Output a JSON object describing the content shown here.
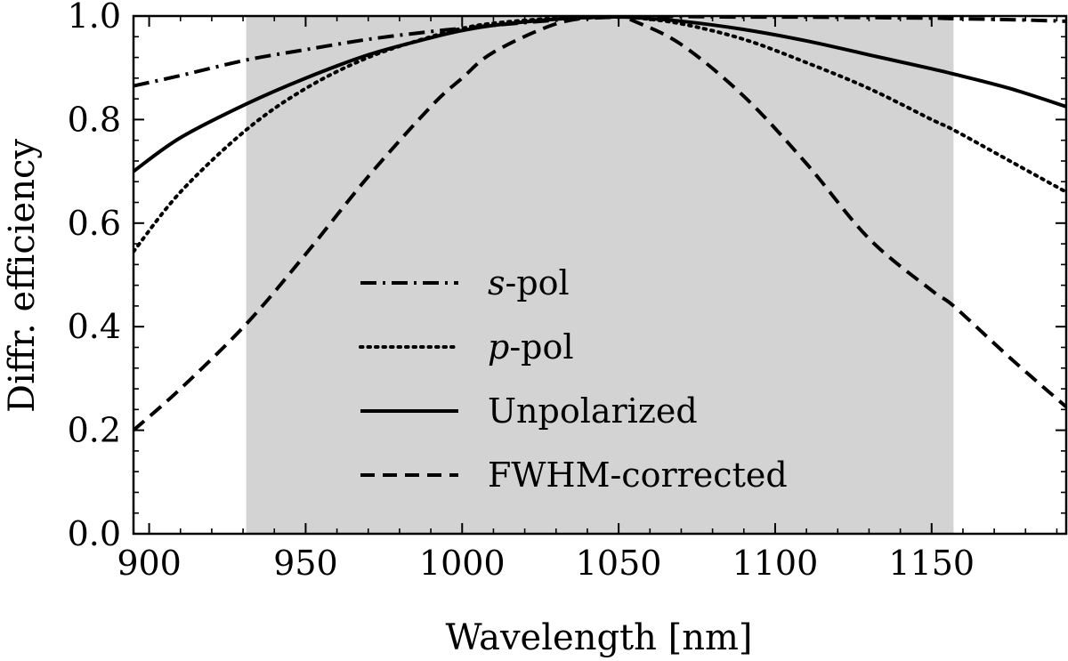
{
  "chart_data": {
    "type": "line",
    "xlabel": "Wavelength [nm]",
    "ylabel": "Diffr. efficiency",
    "xlim": [
      895,
      1193
    ],
    "ylim": [
      0.0,
      1.0
    ],
    "x_ticks": [
      900,
      950,
      1000,
      1050,
      1100,
      1150
    ],
    "x_tick_labels": [
      "900",
      "950",
      "1000",
      "1050",
      "1100",
      "1150"
    ],
    "y_ticks": [
      0.0,
      0.2,
      0.4,
      0.6,
      0.8,
      1.0
    ],
    "y_tick_labels": [
      "0.0",
      "0.2",
      "0.4",
      "0.6",
      "0.8",
      "1.0"
    ],
    "shaded_band": {
      "x_start": 931,
      "x_end": 1157,
      "color": "#d3d3d3"
    },
    "x": [
      895,
      910,
      931,
      950,
      970,
      990,
      1000,
      1010,
      1030,
      1045,
      1050,
      1055,
      1070,
      1090,
      1110,
      1130,
      1150,
      1157,
      1175,
      1193
    ],
    "series": [
      {
        "name": "s-pol",
        "italic_prefix": "s",
        "label_suffix": "-pol",
        "style": "dashdot",
        "values": [
          0.865,
          0.885,
          0.915,
          0.935,
          0.955,
          0.97,
          0.976,
          0.982,
          0.992,
          0.997,
          0.998,
          0.999,
          0.999,
          0.998,
          0.998,
          0.997,
          0.996,
          0.995,
          0.993,
          0.99
        ]
      },
      {
        "name": "p-pol",
        "italic_prefix": "p",
        "label_suffix": "-pol",
        "style": "dotted",
        "values": [
          0.545,
          0.66,
          0.78,
          0.86,
          0.92,
          0.96,
          0.976,
          0.986,
          0.996,
          0.999,
          0.999,
          0.997,
          0.985,
          0.955,
          0.91,
          0.86,
          0.8,
          0.78,
          0.72,
          0.66
        ]
      },
      {
        "name": "Unpolarized",
        "italic_prefix": "",
        "label_suffix": "Unpolarized",
        "style": "solid",
        "values": [
          0.7,
          0.765,
          0.83,
          0.88,
          0.925,
          0.958,
          0.972,
          0.982,
          0.994,
          0.998,
          0.998,
          0.997,
          0.99,
          0.974,
          0.952,
          0.925,
          0.898,
          0.888,
          0.86,
          0.825
        ]
      },
      {
        "name": "FWHM-corrected",
        "italic_prefix": "",
        "label_suffix": "FWHM-corrected",
        "style": "dashed",
        "values": [
          0.2,
          0.28,
          0.405,
          0.54,
          0.69,
          0.825,
          0.88,
          0.93,
          0.985,
          0.999,
          0.999,
          0.99,
          0.945,
          0.845,
          0.715,
          0.57,
          0.47,
          0.44,
          0.34,
          0.245
        ]
      }
    ]
  }
}
